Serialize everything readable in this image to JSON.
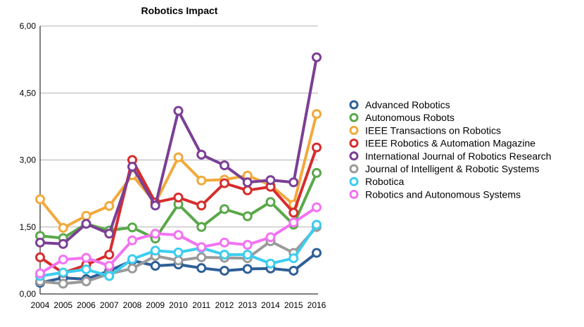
{
  "chart_data": {
    "type": "line",
    "title": "Robotics Impact",
    "xlabel": "",
    "ylabel": "",
    "x": [
      "2004",
      "2005",
      "2006",
      "2007",
      "2008",
      "2009",
      "2010",
      "2011",
      "2012",
      "2013",
      "2014",
      "2015",
      "2016"
    ],
    "ylim": [
      0,
      6
    ],
    "y_ticks": [
      "0,00",
      "1,50",
      "3,00",
      "4,50",
      "6,00"
    ],
    "y_tick_values": [
      0,
      1.5,
      3,
      4.5,
      6
    ],
    "grid": "horizontal",
    "legend_position": "right",
    "series": [
      {
        "name": "Advanced Robotics",
        "color": "#2e5f97",
        "values": [
          0.25,
          0.36,
          0.33,
          0.52,
          0.75,
          0.63,
          0.66,
          0.58,
          0.52,
          0.56,
          0.57,
          0.52,
          0.92
        ]
      },
      {
        "name": "Autonomous Robots",
        "color": "#5aa84a",
        "values": [
          1.3,
          1.25,
          1.57,
          1.42,
          1.49,
          1.24,
          2.01,
          1.5,
          1.9,
          1.74,
          2.06,
          1.55,
          2.71
        ]
      },
      {
        "name": "IEEE Transactions on Robotics",
        "color": "#f2a93b",
        "values": [
          2.12,
          1.48,
          1.75,
          1.97,
          2.66,
          2.04,
          3.06,
          2.54,
          2.56,
          2.65,
          2.44,
          2.0,
          4.03
        ]
      },
      {
        "name": "IEEE Robotics & Automation Magazine",
        "color": "#d62d2d",
        "values": [
          0.82,
          0.47,
          0.65,
          0.88,
          3.0,
          2.05,
          2.16,
          1.98,
          2.48,
          2.32,
          2.4,
          1.82,
          3.28
        ]
      },
      {
        "name": "International Journal of Robotics Research",
        "color": "#7b3f95",
        "values": [
          1.15,
          1.12,
          1.57,
          1.35,
          2.85,
          1.98,
          4.1,
          3.12,
          2.88,
          2.5,
          2.55,
          2.5,
          5.3
        ]
      },
      {
        "name": "Journal of Intelligent & Robotic Systems",
        "color": "#9a9a9a",
        "values": [
          0.28,
          0.23,
          0.28,
          0.45,
          0.57,
          0.85,
          0.75,
          0.82,
          0.81,
          0.8,
          1.18,
          0.92,
          1.5
        ]
      },
      {
        "name": "Robotica",
        "color": "#3ccdf0",
        "values": [
          0.4,
          0.48,
          0.55,
          0.4,
          0.78,
          0.97,
          0.93,
          1.03,
          0.88,
          0.88,
          0.68,
          0.8,
          1.55
        ]
      },
      {
        "name": "Robotics and Autonomous Systems",
        "color": "#f273f2",
        "values": [
          0.46,
          0.77,
          0.81,
          0.63,
          1.2,
          1.35,
          1.32,
          1.05,
          1.15,
          1.1,
          1.27,
          1.6,
          1.94
        ]
      }
    ]
  }
}
